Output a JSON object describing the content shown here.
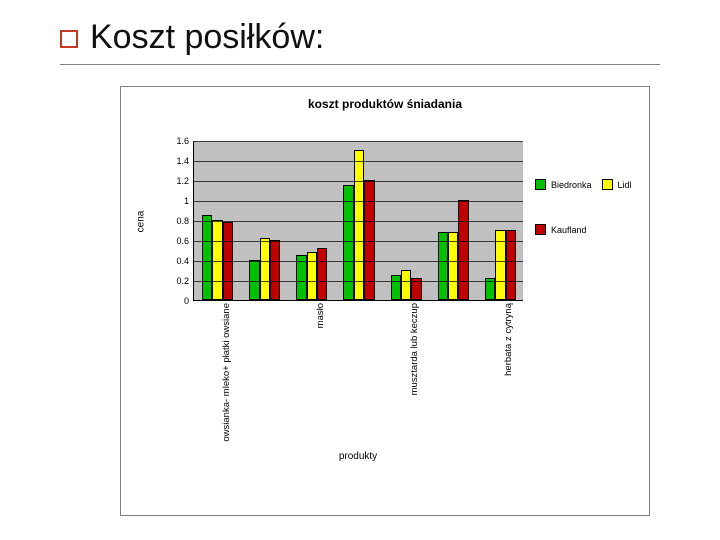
{
  "slide": {
    "title": "Koszt posiłków:",
    "bullet_border_color": "#c23b22",
    "title_fontsize": 34,
    "rule_color": "#808080"
  },
  "chart": {
    "type": "bar-grouped",
    "title": "koszt produktów śniadania",
    "title_fontsize": 12,
    "frame_border_color": "#808080",
    "plot_bg": "#c0c0c0",
    "ylabel": "cena",
    "xlabel": "produkty",
    "ylim": [
      0,
      1.6
    ],
    "ytick_step": 0.2,
    "yticks": [
      "0",
      "0.2",
      "0.4",
      "0.6",
      "0.8",
      "1",
      "1.2",
      "1.4",
      "1.6"
    ],
    "grid_color": "#000000",
    "categories": [
      "owsianka- mleko+ płatki owsiane",
      "",
      "masło",
      "",
      "musztarda lub keczup",
      "",
      "herbata z cytryną"
    ],
    "n_groups": 7,
    "series": [
      {
        "name": "Biedronka",
        "color": "#00c000",
        "border": "#000000"
      },
      {
        "name": "Lidl",
        "color": "#ffff00",
        "border": "#000000"
      },
      {
        "name": "Kaufland",
        "color": "#c00000",
        "border": "#000000"
      }
    ],
    "values": [
      [
        0.85,
        0.8,
        0.78
      ],
      [
        0.4,
        0.62,
        0.6
      ],
      [
        0.45,
        0.48,
        0.52
      ],
      [
        1.15,
        1.5,
        1.2
      ],
      [
        0.25,
        0.3,
        0.22
      ],
      [
        0.68,
        0.68,
        1.0
      ],
      [
        0.22,
        0.7,
        0.7
      ]
    ],
    "bar_rel_width": 0.22,
    "group_inner_gap": 0.0,
    "group_outer_pad": 0.17,
    "label_fontsize": 9.5,
    "tick_fontsize": 9
  },
  "legend": {
    "items": [
      "Biedronka",
      "Lidl",
      "Kaufland"
    ],
    "colors": [
      "#00c000",
      "#ffff00",
      "#c00000"
    ],
    "fontsize": 9
  }
}
